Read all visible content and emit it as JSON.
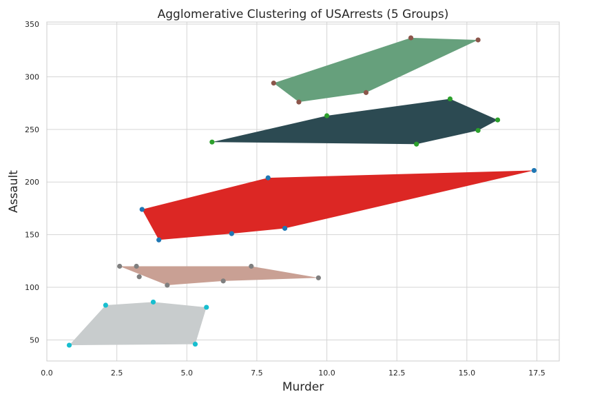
{
  "chart_data": {
    "type": "scatter",
    "title": "Agglomerative Clustering of USArrests (5 Groups)",
    "xlabel": "Murder",
    "ylabel": "Assault",
    "xlim": [
      0,
      18.3
    ],
    "ylim": [
      30,
      352
    ],
    "xticks": [
      "0.0",
      "2.5",
      "5.0",
      "7.5",
      "10.0",
      "12.5",
      "15.0",
      "17.5"
    ],
    "xtick_values": [
      0,
      2.5,
      5,
      7.5,
      10,
      12.5,
      15,
      17.5
    ],
    "yticks": [
      "50",
      "100",
      "150",
      "200",
      "250",
      "300",
      "350"
    ],
    "ytick_values": [
      50,
      100,
      150,
      200,
      250,
      300,
      350
    ],
    "grid": true,
    "series": [
      {
        "point_color": "#8c564b",
        "hull_color": "#66a07c",
        "points": [
          [
            8.1,
            294
          ],
          [
            9.0,
            276
          ],
          [
            11.4,
            285
          ],
          [
            13.0,
            337
          ],
          [
            15.4,
            335
          ]
        ],
        "hull": [
          [
            8.1,
            294
          ],
          [
            9.0,
            276
          ],
          [
            11.4,
            285
          ],
          [
            15.4,
            335
          ],
          [
            13.0,
            337
          ]
        ]
      },
      {
        "point_color": "#2ca02c",
        "hull_color": "#2c4a52",
        "points": [
          [
            5.9,
            238
          ],
          [
            10.0,
            263
          ],
          [
            13.2,
            236
          ],
          [
            14.4,
            279
          ],
          [
            15.4,
            249
          ],
          [
            16.1,
            259
          ]
        ],
        "hull": [
          [
            5.9,
            238
          ],
          [
            13.2,
            236
          ],
          [
            15.4,
            249
          ],
          [
            16.1,
            259
          ],
          [
            14.4,
            279
          ],
          [
            10.0,
            263
          ]
        ]
      },
      {
        "point_color": "#1f77b4",
        "hull_color": "#dc2724",
        "points": [
          [
            3.4,
            174
          ],
          [
            4.0,
            145
          ],
          [
            6.6,
            151
          ],
          [
            7.9,
            204
          ],
          [
            8.5,
            156
          ],
          [
            17.4,
            211
          ]
        ],
        "hull": [
          [
            3.4,
            174
          ],
          [
            4.0,
            145
          ],
          [
            6.6,
            151
          ],
          [
            8.5,
            156
          ],
          [
            17.4,
            211
          ],
          [
            7.9,
            204
          ]
        ]
      },
      {
        "point_color": "#7f7f7f",
        "hull_color": "#c9a094",
        "points": [
          [
            2.6,
            120
          ],
          [
            3.2,
            120
          ],
          [
            3.3,
            110
          ],
          [
            4.3,
            102
          ],
          [
            6.3,
            106
          ],
          [
            7.3,
            120
          ],
          [
            9.7,
            109
          ]
        ],
        "hull": [
          [
            2.6,
            120
          ],
          [
            4.3,
            102
          ],
          [
            6.3,
            106
          ],
          [
            9.7,
            109
          ],
          [
            7.3,
            120
          ],
          [
            3.2,
            120
          ]
        ]
      },
      {
        "point_color": "#17becf",
        "hull_color": "#c8cccd",
        "points": [
          [
            0.8,
            45
          ],
          [
            2.1,
            83
          ],
          [
            3.8,
            86
          ],
          [
            5.3,
            46
          ],
          [
            5.7,
            81
          ]
        ],
        "hull": [
          [
            0.8,
            45
          ],
          [
            5.3,
            46
          ],
          [
            5.7,
            81
          ],
          [
            3.8,
            86
          ],
          [
            2.1,
            83
          ]
        ]
      }
    ]
  }
}
